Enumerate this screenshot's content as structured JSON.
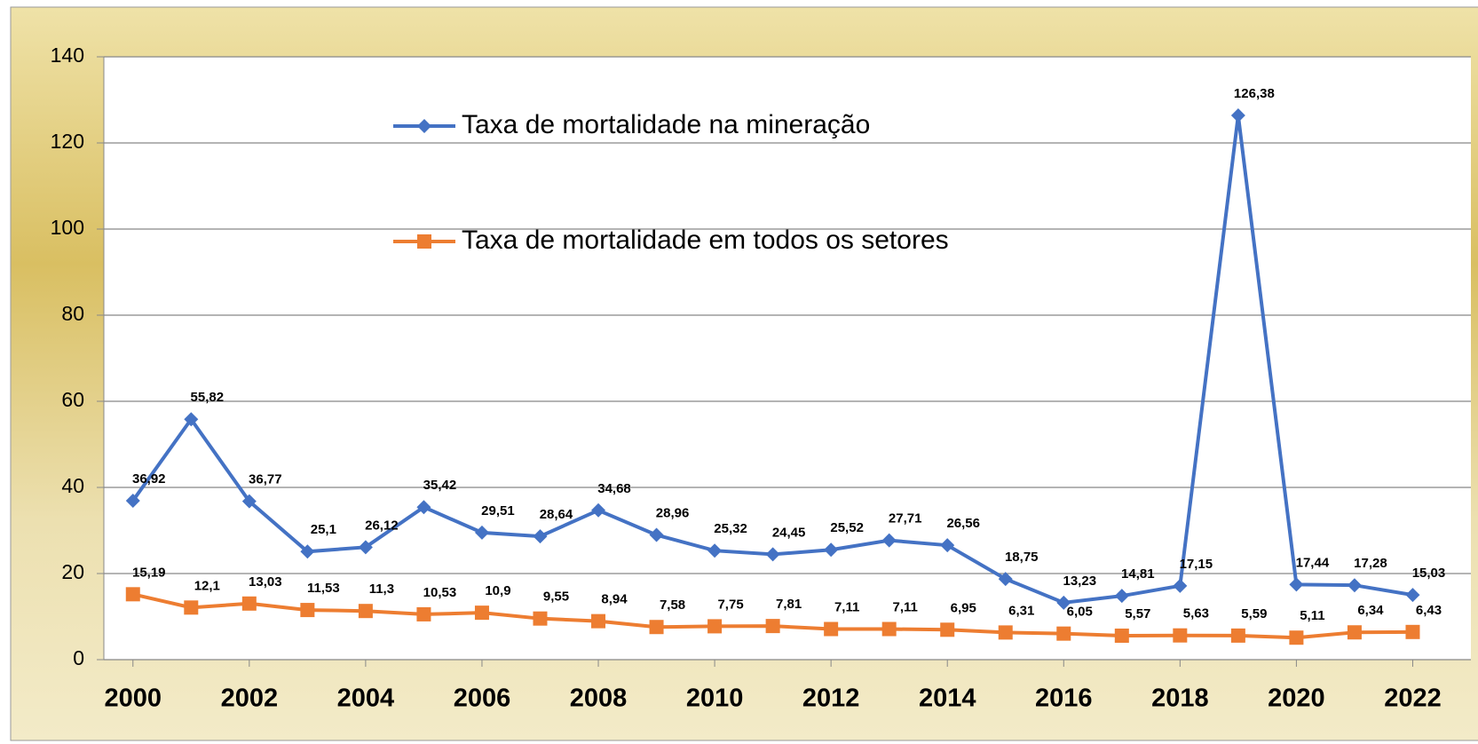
{
  "chart_data": {
    "type": "line",
    "x": [
      2000,
      2001,
      2002,
      2003,
      2004,
      2005,
      2006,
      2007,
      2008,
      2009,
      2010,
      2011,
      2012,
      2013,
      2014,
      2015,
      2016,
      2017,
      2018,
      2019,
      2020,
      2021,
      2022
    ],
    "series": [
      {
        "name": "Taxa de mortalidade na mineração",
        "color": "#4472c4",
        "marker": "diamond",
        "values": [
          36.92,
          55.82,
          36.77,
          25.1,
          26.12,
          35.42,
          29.51,
          28.64,
          34.68,
          28.96,
          25.32,
          24.45,
          25.52,
          27.71,
          26.56,
          18.75,
          13.23,
          14.81,
          17.15,
          126.38,
          17.44,
          17.28,
          15.03
        ],
        "value_labels": [
          "36,92",
          "55,82",
          "36,77",
          "25,1",
          "26,12",
          "35,42",
          "29,51",
          "28,64",
          "34,68",
          "28,96",
          "25,32",
          "24,45",
          "25,52",
          "27,71",
          "26,56",
          "18,75",
          "13,23",
          "14,81",
          "17,15",
          "126,38",
          "17,44",
          "17,28",
          "15,03"
        ]
      },
      {
        "name": "Taxa de mortalidade em todos os setores",
        "color": "#ed7d31",
        "marker": "square",
        "values": [
          15.19,
          12.1,
          13.03,
          11.53,
          11.3,
          10.53,
          10.9,
          9.55,
          8.94,
          7.58,
          7.75,
          7.81,
          7.11,
          7.11,
          6.95,
          6.31,
          6.05,
          5.57,
          5.63,
          5.59,
          5.11,
          6.34,
          6.43
        ],
        "value_labels": [
          "15,19",
          "12,1",
          "13,03",
          "11,53",
          "11,3",
          "10,53",
          "10,9",
          "9,55",
          "8,94",
          "7,58",
          "7,75",
          "7,81",
          "7,11",
          "7,11",
          "6,95",
          "6,31",
          "6,05",
          "5,57",
          "5,63",
          "5,59",
          "5,11",
          "6,34",
          "6,43"
        ]
      }
    ],
    "xlim": [
      1999.5,
      2023
    ],
    "xticks": [
      2000,
      2002,
      2004,
      2006,
      2008,
      2010,
      2012,
      2014,
      2016,
      2018,
      2020,
      2022
    ],
    "ylim": [
      0,
      140
    ],
    "yticks": [
      0,
      20,
      40,
      60,
      80,
      100,
      120,
      140
    ],
    "grid": true
  }
}
